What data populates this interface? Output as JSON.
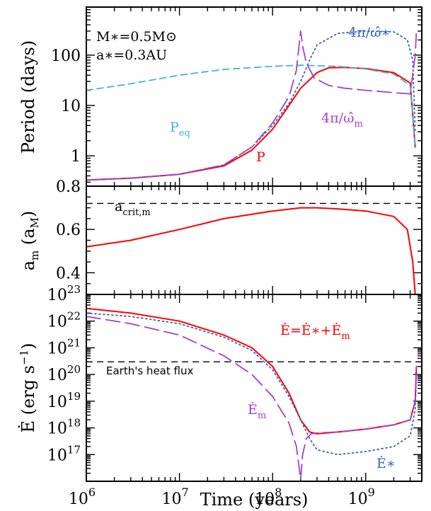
{
  "chart_data": [
    {
      "type": "line",
      "ylabel": "Period (days)",
      "xscale": "log",
      "yscale": "log",
      "xlim": [
        1000000,
        4000000000
      ],
      "ylim": [
        0.25,
        900
      ],
      "yticks": [
        {
          "v": 1,
          "label": "1"
        },
        {
          "v": 10,
          "label": "10"
        },
        {
          "v": 100,
          "label": "100"
        }
      ],
      "annotations": {
        "mass": "M∗=0.5M⊙",
        "sep": "a∗=0.3AU",
        "peq": "P",
        "peq_sub": "eq",
        "p": "P",
        "omega_star": "4π/ω̂∗",
        "omega_m": "4π/ω̂",
        "omega_m_sub": "m"
      },
      "series": [
        {
          "key": "P",
          "color": "#ff0000",
          "style": "solid",
          "x": [
            1000000.0,
            3000000.0,
            10000000.0,
            30000000.0,
            60000000.0,
            100000000.0,
            150000000.0,
            200000000.0,
            300000000.0,
            400000000.0,
            600000000.0,
            1000000000.0,
            2000000000.0,
            3000000000.0,
            3400000000.0
          ],
          "y": [
            0.33,
            0.36,
            0.43,
            0.63,
            1.3,
            3.4,
            10,
            22,
            45,
            56,
            57,
            54,
            45,
            28,
            1.5
          ]
        },
        {
          "key": "Peq",
          "color": "#46b4c8",
          "style": "dashed",
          "x": [
            1000000.0,
            3000000.0,
            10000000.0,
            30000000.0,
            100000000.0,
            200000000.0,
            500000000.0,
            1000000000.0,
            2000000000.0,
            3000000000.0,
            3400000000.0
          ],
          "y": [
            20,
            27,
            40,
            52,
            60,
            63,
            60,
            53,
            42,
            25,
            1.6
          ]
        },
        {
          "key": "omega_star",
          "color": "#3c64b4",
          "style": "dotted",
          "x": [
            1000000.0,
            3000000.0,
            10000000.0,
            30000000.0,
            60000000.0,
            100000000.0,
            150000000.0,
            200000000.0,
            250000000.0,
            300000000.0,
            500000000.0,
            1000000000.0,
            2000000000.0,
            2800000000.0,
            3200000000.0,
            3400000000.0
          ],
          "y": [
            0.33,
            0.36,
            0.43,
            0.66,
            1.5,
            4,
            11,
            30,
            80,
            160,
            270,
            300,
            290,
            200,
            80,
            3
          ]
        },
        {
          "key": "omega_m",
          "color": "#a040d0",
          "style": "longdash",
          "x": [
            1000000.0,
            3000000.0,
            10000000.0,
            30000000.0,
            60000000.0,
            100000000.0,
            150000000.0,
            180000000.0,
            200000000.0,
            210000000.0,
            230000000.0,
            280000000.0,
            400000000.0,
            600000000.0,
            1000000000.0,
            2000000000.0,
            3000000000.0,
            3400000000.0,
            3500000000.0
          ],
          "y": [
            0.33,
            0.36,
            0.43,
            0.66,
            1.5,
            4.5,
            15,
            50,
            300,
            150,
            70,
            35,
            25,
            22,
            20,
            18,
            17,
            100,
            300
          ]
        }
      ]
    },
    {
      "type": "line",
      "ylabel": "a",
      "ylabel_sub": "m",
      "yunit": "(a",
      "yunit_sub": "M",
      "yunit_end": ")",
      "xscale": "log",
      "xlim": [
        1000000,
        4000000000
      ],
      "ylim": [
        0.3,
        0.8
      ],
      "yticks": [
        {
          "v": 0.4,
          "label": "0.4"
        },
        {
          "v": 0.6,
          "label": "0.6"
        },
        {
          "v": 0.8,
          "label": "0.8"
        }
      ],
      "annotations": {
        "acrit": "a",
        "acrit_sub": "crit,m"
      },
      "hline": 0.72,
      "series": [
        {
          "key": "am",
          "color": "#ff0000",
          "style": "solid",
          "x": [
            1000000.0,
            3000000.0,
            10000000.0,
            30000000.0,
            100000000.0,
            200000000.0,
            300000000.0,
            500000000.0,
            1000000000.0,
            2000000000.0,
            2800000000.0,
            3200000000.0,
            3400000000.0
          ],
          "y": [
            0.52,
            0.55,
            0.6,
            0.65,
            0.685,
            0.7,
            0.7,
            0.695,
            0.685,
            0.66,
            0.6,
            0.45,
            0.3
          ]
        }
      ]
    },
    {
      "type": "line",
      "ylabel": "Ė (erg s",
      "ylabel_sup": "−1",
      "ylabel_end": ")",
      "xlabel": "Time (years)",
      "xscale": "log",
      "yscale": "log",
      "xlim": [
        1000000,
        4000000000
      ],
      "ylim": [
        1e+16,
        1e+23
      ],
      "xticks": [
        {
          "v": 1000000.0,
          "base": "10",
          "exp": "6"
        },
        {
          "v": 10000000.0,
          "base": "10",
          "exp": "7"
        },
        {
          "v": 100000000.0,
          "base": "10",
          "exp": "8"
        },
        {
          "v": 1000000000.0,
          "base": "10",
          "exp": "9"
        }
      ],
      "yticks": [
        {
          "v": 1e+17,
          "base": "10",
          "exp": "17"
        },
        {
          "v": 1e+18,
          "base": "10",
          "exp": "18"
        },
        {
          "v": 1e+19,
          "base": "10",
          "exp": "19"
        },
        {
          "v": 1e+20,
          "base": "10",
          "exp": "20"
        },
        {
          "v": 1e+21,
          "base": "10",
          "exp": "21"
        },
        {
          "v": 1e+22,
          "base": "10",
          "exp": "22"
        },
        {
          "v": 1e+23,
          "base": "10",
          "exp": "23"
        }
      ],
      "annotations": {
        "total": "Ė=Ė∗+Ė",
        "total_sub": "m",
        "earth": "Earth's heat flux",
        "em": "Ė",
        "em_sub": "m",
        "estar": "Ė∗"
      },
      "hline": 3e+20,
      "series": [
        {
          "key": "E_total",
          "color": "#ff0000",
          "style": "solid",
          "x": [
            1000000.0,
            3000000.0,
            10000000.0,
            30000000.0,
            60000000.0,
            100000000.0,
            150000000.0,
            200000000.0,
            250000000.0,
            300000000.0,
            500000000.0,
            1000000000.0,
            2000000000.0,
            3000000000.0,
            3400000000.0,
            3500000000.0
          ],
          "y": [
            3e+22,
            2e+22,
            1e+22,
            3e+21,
            1e+21,
            2e+20,
            2e+19,
            2e+18,
            7e+17,
            6e+17,
            7e+17,
            9e+17,
            1.3e+18,
            2e+18,
            1e+19,
            2e+20
          ]
        },
        {
          "key": "E_star",
          "color": "#3c64b4",
          "style": "dotted",
          "x": [
            1000000.0,
            3000000.0,
            10000000.0,
            30000000.0,
            60000000.0,
            100000000.0,
            150000000.0,
            200000000.0,
            250000000.0,
            300000000.0,
            500000000.0,
            1000000000.0,
            2000000000.0,
            3000000000.0,
            3400000000.0,
            3500000000.0
          ],
          "y": [
            2e+22,
            1.5e+22,
            8e+21,
            2.5e+21,
            8e+20,
            1.5e+20,
            1.5e+19,
            2e+18,
            4e+17,
            1.5e+17,
            1e+17,
            1.3e+17,
            2e+17,
            5e+17,
            5e+18,
            1e+20
          ]
        },
        {
          "key": "E_m",
          "color": "#a040d0",
          "style": "longdash",
          "x": [
            1000000.0,
            3000000.0,
            10000000.0,
            30000000.0,
            60000000.0,
            100000000.0,
            150000000.0,
            180000000.0,
            200000000.0,
            210000000.0,
            230000000.0,
            260000000.0,
            300000000.0,
            500000000.0,
            1000000000.0,
            2000000000.0,
            3000000000.0,
            3400000000.0,
            3500000000.0
          ],
          "y": [
            1.5e+22,
            8e+21,
            3e+21,
            5e+20,
            1e+20,
            1.5e+19,
            1.5e+18,
            2e+17,
            1.2e+16,
            1e+17,
            4e+17,
            6e+17,
            6.5e+17,
            7e+17,
            9e+17,
            1.3e+18,
            2e+18,
            1e+19,
            2e+20
          ]
        }
      ]
    }
  ]
}
